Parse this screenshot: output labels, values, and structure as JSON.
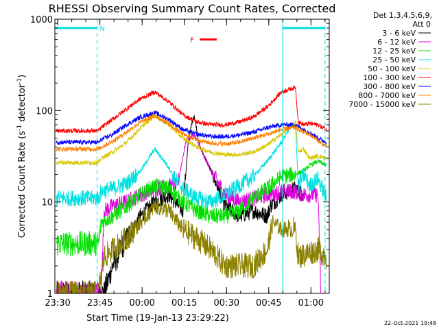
{
  "chart_data": {
    "type": "line",
    "title": "RHESSI Observing Summary Count Rates, Corrected",
    "xlabel": "Start Time (19-Jan-13 23:29:22)",
    "ylabel_main": "Corrected Count Rate (s",
    "ylabel_sup1": "-1",
    "ylabel_mid": " detector",
    "ylabel_sup2": "-1",
    "ylabel_end": ")",
    "ylog": true,
    "ylim": [
      1,
      1000
    ],
    "xlim_min": [
      -0.5,
      97
    ],
    "x_ticks": [
      {
        "min": 0.5,
        "label": "23:30"
      },
      {
        "min": 15.5,
        "label": "23:45"
      },
      {
        "min": 30.5,
        "label": "00:00"
      },
      {
        "min": 45.5,
        "label": "00:15"
      },
      {
        "min": 60.5,
        "label": "00:30"
      },
      {
        "min": 75.5,
        "label": "00:45"
      },
      {
        "min": 90.5,
        "label": "01:00"
      }
    ],
    "y_ticks": [
      {
        "value": 1,
        "label": "1"
      },
      {
        "value": 10,
        "label": "10"
      },
      {
        "value": 100,
        "label": "100"
      },
      {
        "value": 1000,
        "label": "1000"
      }
    ],
    "legend": {
      "header1": "Det 1,3,4,5,6,9,",
      "header2": "Att 0",
      "placement": "right"
    },
    "series": [
      {
        "name": "3 - 6 keV",
        "color": "#000000",
        "x": [
          0,
          16,
          17,
          20,
          25,
          30,
          35,
          40,
          45,
          47,
          49,
          51,
          55,
          60,
          65,
          70,
          75,
          76,
          80,
          85,
          88
        ],
        "y": [
          1,
          1,
          1,
          2,
          4,
          7,
          10,
          12,
          8,
          50,
          90,
          40,
          22,
          9,
          7,
          8,
          7,
          9,
          12,
          14,
          12
        ]
      },
      {
        "name": "6 - 12 keV",
        "color": "#e000e0",
        "x": [
          0,
          16,
          17,
          20,
          25,
          30,
          35,
          40,
          43,
          46,
          49,
          51,
          55,
          60,
          65,
          70,
          75,
          80,
          85,
          88,
          93,
          94
        ],
        "y": [
          1,
          1,
          8,
          9,
          10,
          12,
          14,
          15,
          15,
          45,
          55,
          40,
          22,
          12,
          10,
          11,
          12,
          13,
          13,
          12,
          12,
          1
        ]
      },
      {
        "name": "12 - 25 keV",
        "color": "#00e000",
        "x": [
          0,
          15,
          16,
          20,
          25,
          30,
          35,
          40,
          45,
          50,
          55,
          60,
          65,
          70,
          75,
          80,
          85,
          88,
          90,
          93,
          96
        ],
        "y": [
          3.5,
          3.5,
          6,
          7,
          9,
          12,
          15,
          14,
          10,
          8,
          7,
          7,
          8,
          11,
          14,
          19,
          20,
          22,
          25,
          28,
          25
        ]
      },
      {
        "name": "25 - 50 keV",
        "color": "#00e0e0",
        "x": [
          0,
          15,
          16,
          20,
          25,
          30,
          35,
          40,
          42,
          45,
          50,
          55,
          60,
          65,
          70,
          75,
          80,
          83,
          85,
          86,
          88,
          90,
          93,
          95,
          96
        ],
        "y": [
          11,
          11,
          13,
          14,
          16,
          22,
          38,
          24,
          18,
          14,
          11,
          10,
          12,
          15,
          19,
          28,
          45,
          65,
          70,
          15,
          20,
          15,
          18,
          13,
          11
        ]
      },
      {
        "name": "50 - 100 keV",
        "color": "#d8c800",
        "x": [
          0,
          15,
          16,
          20,
          25,
          30,
          35,
          40,
          45,
          50,
          55,
          60,
          65,
          70,
          75,
          80,
          83,
          85,
          86,
          88,
          90,
          93,
          96
        ],
        "y": [
          27,
          27,
          30,
          35,
          45,
          65,
          88,
          70,
          50,
          40,
          35,
          33,
          33,
          35,
          42,
          55,
          68,
          75,
          35,
          38,
          30,
          32,
          30
        ]
      },
      {
        "name": "100 - 300 keV",
        "color": "#ff0000",
        "x": [
          0,
          15,
          16,
          20,
          25,
          30,
          35,
          40,
          45,
          50,
          55,
          60,
          65,
          70,
          75,
          80,
          85,
          86,
          88,
          90,
          93,
          96
        ],
        "y": [
          60,
          60,
          65,
          80,
          105,
          135,
          160,
          125,
          90,
          75,
          70,
          70,
          75,
          85,
          110,
          160,
          180,
          75,
          70,
          72,
          70,
          62
        ]
      },
      {
        "name": "300 - 800 keV",
        "color": "#0000ff",
        "x": [
          0,
          15,
          16,
          20,
          25,
          30,
          35,
          40,
          45,
          50,
          55,
          60,
          65,
          70,
          75,
          80,
          85,
          88,
          90,
          93,
          96
        ],
        "y": [
          45,
          45,
          48,
          55,
          70,
          85,
          95,
          80,
          62,
          55,
          52,
          52,
          54,
          58,
          65,
          70,
          70,
          62,
          58,
          50,
          45
        ]
      },
      {
        "name": "800 - 7000 keV",
        "color": "#ff8000",
        "x": [
          0,
          15,
          16,
          20,
          25,
          30,
          35,
          40,
          45,
          50,
          55,
          60,
          65,
          70,
          75,
          80,
          85,
          88,
          90,
          93,
          96
        ],
        "y": [
          38,
          38,
          40,
          46,
          58,
          75,
          88,
          72,
          55,
          48,
          44,
          43,
          45,
          50,
          55,
          62,
          65,
          58,
          55,
          47,
          40
        ]
      },
      {
        "name": "7000 - 15000 keV",
        "color": "#8b8000",
        "x": [
          0,
          15,
          16,
          17,
          20,
          25,
          30,
          35,
          40,
          45,
          50,
          55,
          60,
          65,
          70,
          75,
          77,
          80,
          85,
          86,
          90,
          93,
          96
        ],
        "y": [
          1,
          1,
          1.6,
          2.5,
          3,
          4,
          6,
          9,
          8,
          5,
          4,
          3,
          2,
          2,
          2,
          3,
          6,
          5,
          5,
          2.5,
          2.8,
          3,
          2.5
        ]
      }
    ],
    "intervals": [
      {
        "label": "N",
        "color": "#00e0e0",
        "start": -0.5,
        "end": 14.5,
        "y": 800
      },
      {
        "label": "F",
        "color": "#ff0000",
        "start": 51,
        "end": 57,
        "y": 600
      },
      {
        "label": "",
        "color": "#00e0e0",
        "start": 80.5,
        "end": 95.5,
        "y": 800
      }
    ],
    "boundaries": [
      14.5,
      80.5,
      95.5
    ]
  },
  "footer": {
    "date": "22-Oct-2021 19:48"
  }
}
